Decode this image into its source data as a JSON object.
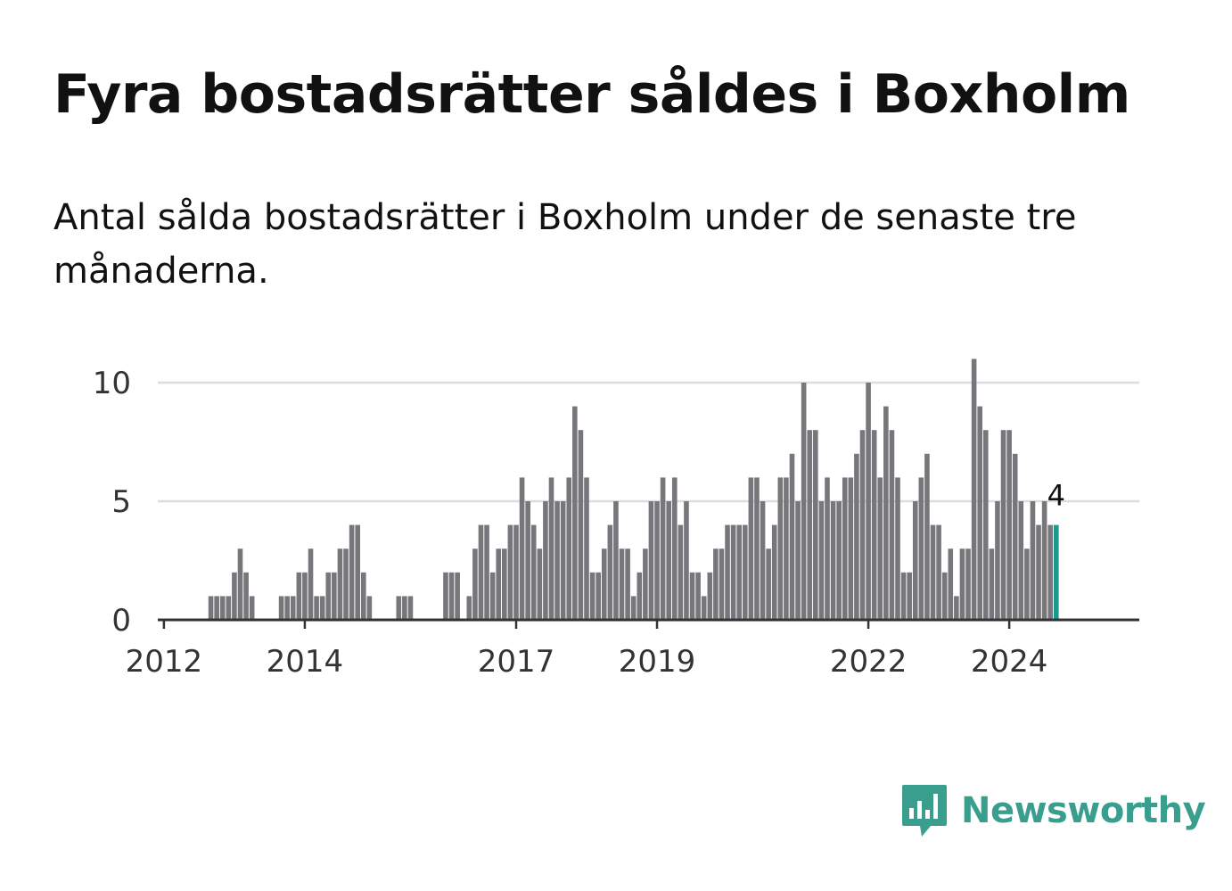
{
  "title": "Fyra bostadsrätter såldes i Boxholm",
  "subtitle": "Antal sålda bostadsrätter i Boxholm under de senaste tre månaderna.",
  "brand": {
    "name": "Newsworthy",
    "color": "#3a9e8f"
  },
  "chart_data": {
    "type": "bar",
    "start_month": "2011-12",
    "y_ticks": [
      0,
      5,
      10
    ],
    "ylim": [
      0,
      11
    ],
    "x_ticks": [
      "2012",
      "2014",
      "2017",
      "2019",
      "2022",
      "2024"
    ],
    "bar_color": "#77767b",
    "highlight_color": "#1a9a8a",
    "highlight_label": "4",
    "values": [
      0,
      0,
      0,
      0,
      0,
      0,
      0,
      0,
      0,
      1,
      1,
      1,
      1,
      2,
      3,
      2,
      1,
      0,
      0,
      0,
      0,
      1,
      1,
      1,
      2,
      2,
      3,
      1,
      1,
      2,
      2,
      3,
      3,
      4,
      4,
      2,
      1,
      0,
      0,
      0,
      0,
      1,
      1,
      1,
      0,
      0,
      0,
      0,
      0,
      2,
      2,
      2,
      0,
      1,
      3,
      4,
      4,
      2,
      3,
      3,
      4,
      4,
      6,
      5,
      4,
      3,
      5,
      6,
      5,
      5,
      6,
      9,
      8,
      6,
      2,
      2,
      3,
      4,
      5,
      3,
      3,
      1,
      2,
      3,
      5,
      5,
      6,
      5,
      6,
      4,
      5,
      2,
      2,
      1,
      2,
      3,
      3,
      4,
      4,
      4,
      4,
      6,
      6,
      5,
      3,
      4,
      6,
      6,
      7,
      5,
      10,
      8,
      8,
      5,
      6,
      5,
      5,
      6,
      6,
      7,
      8,
      10,
      8,
      6,
      9,
      8,
      6,
      2,
      2,
      5,
      6,
      7,
      4,
      4,
      2,
      3,
      1,
      3,
      3,
      11,
      9,
      8,
      3,
      5,
      8,
      8,
      7,
      5,
      3,
      5,
      4,
      5,
      4,
      4
    ]
  }
}
